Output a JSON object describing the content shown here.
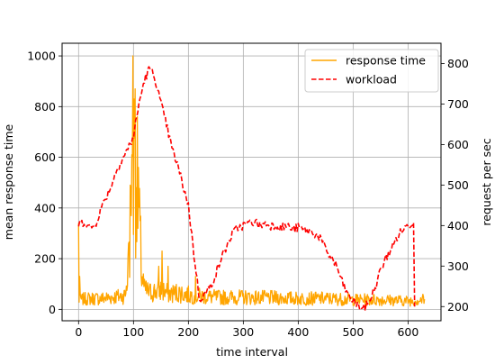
{
  "chart_data": {
    "type": "line",
    "xlabel": "time interval",
    "ylabel_left": "mean response time",
    "ylabel_right": "request per sec",
    "xlim": [
      -30,
      660
    ],
    "ylim_left": [
      -45,
      1050
    ],
    "ylim_right": [
      165,
      850
    ],
    "x_ticks": [
      0,
      100,
      200,
      300,
      400,
      500,
      600
    ],
    "y_ticks_left": [
      0,
      200,
      400,
      600,
      800,
      1000
    ],
    "y_ticks_right": [
      200,
      300,
      400,
      500,
      600,
      700,
      800
    ],
    "grid": true,
    "legend_position": "top-right",
    "legend": [
      "response time",
      "workload"
    ],
    "series": [
      {
        "name": "response time",
        "axis": "left",
        "color": "#ffa500",
        "style": "solid",
        "baseline_x": [
          0,
          20,
          40,
          60,
          80,
          85,
          90,
          95,
          100,
          105,
          110,
          115,
          120,
          130,
          140,
          150,
          160,
          170,
          180,
          200,
          220,
          250,
          300,
          350,
          400,
          450,
          500,
          550,
          600,
          630
        ],
        "baseline_y": [
          40,
          45,
          45,
          50,
          55,
          60,
          150,
          400,
          480,
          600,
          380,
          150,
          80,
          70,
          75,
          80,
          70,
          65,
          70,
          60,
          55,
          50,
          50,
          48,
          45,
          45,
          40,
          40,
          35,
          40
        ],
        "spikes_x": [
          0,
          2,
          91,
          94,
          97,
          99,
          101,
          103,
          105,
          107,
          109,
          146,
          152,
          163,
          213
        ],
        "spikes_y": [
          340,
          130,
          260,
          490,
          610,
          1000,
          830,
          870,
          480,
          760,
          560,
          170,
          230,
          170,
          130
        ]
      },
      {
        "name": "workload",
        "axis": "right",
        "color": "#ff0000",
        "style": "dashed",
        "x": [
          0,
          10,
          20,
          30,
          40,
          50,
          60,
          70,
          80,
          90,
          100,
          110,
          120,
          130,
          140,
          150,
          160,
          170,
          180,
          190,
          200,
          210,
          220,
          230,
          240,
          250,
          260,
          270,
          280,
          290,
          300,
          310,
          320,
          330,
          340,
          350,
          360,
          370,
          380,
          390,
          400,
          410,
          420,
          430,
          440,
          450,
          460,
          470,
          480,
          490,
          500,
          510,
          520,
          530,
          540,
          550,
          560,
          570,
          580,
          590,
          600,
          610,
          612
        ],
        "y": [
          400,
          410,
          395,
          400,
          440,
          470,
          500,
          540,
          565,
          590,
          620,
          700,
          760,
          790,
          760,
          700,
          650,
          590,
          550,
          500,
          450,
          330,
          220,
          230,
          250,
          280,
          320,
          350,
          380,
          395,
          400,
          405,
          410,
          400,
          405,
          400,
          400,
          395,
          400,
          390,
          395,
          390,
          385,
          380,
          370,
          340,
          320,
          300,
          260,
          230,
          215,
          200,
          195,
          215,
          245,
          290,
          320,
          345,
          370,
          390,
          400,
          410,
          200
        ]
      }
    ]
  }
}
